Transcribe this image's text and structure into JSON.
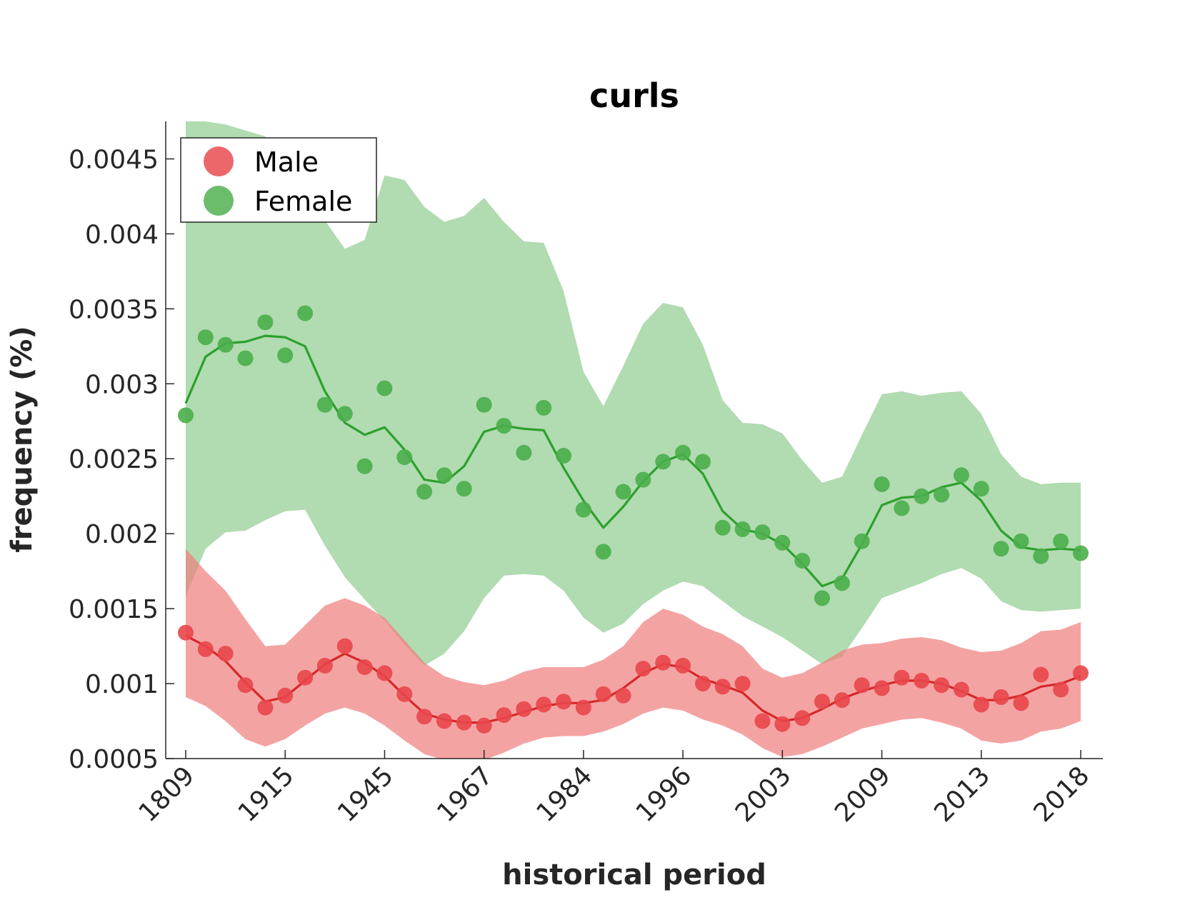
{
  "chart_data": {
    "type": "line",
    "title": "curls",
    "xlabel": "historical period",
    "ylabel": "frequency (%)",
    "ylim": [
      0.0005,
      0.00475
    ],
    "xlim": [
      0,
      45
    ],
    "yticks": [
      0.0005,
      0.001,
      0.0015,
      0.002,
      0.0025,
      0.003,
      0.0035,
      0.004,
      0.0045
    ],
    "ytick_labels": [
      "0.0005",
      "0.001",
      "0.0015",
      "0.002",
      "0.0025",
      "0.003",
      "0.0035",
      "0.004",
      "0.0045"
    ],
    "xtick_positions": [
      0,
      5,
      10,
      15,
      20,
      25,
      30,
      35,
      40,
      45
    ],
    "xtick_labels": [
      "1809",
      "1915",
      "1945",
      "1967",
      "1984",
      "1996",
      "2003",
      "2009",
      "2013",
      "2018"
    ],
    "grid": false,
    "legend_position": "top-left",
    "series": [
      {
        "name": "Male",
        "color": "#d62728",
        "point_color": "#e8464a",
        "band_color": "#f08080",
        "points": [
          0.00134,
          0.00123,
          0.0012,
          0.00099,
          0.00084,
          0.00092,
          0.00104,
          0.00112,
          0.00125,
          0.00111,
          0.00107,
          0.00093,
          0.00078,
          0.00075,
          0.00074,
          0.00072,
          0.00079,
          0.00083,
          0.00086,
          0.00088,
          0.00084,
          0.00093,
          0.00092,
          0.0011,
          0.00114,
          0.00112,
          0.001,
          0.00098,
          0.001,
          0.00075,
          0.00073,
          0.00077,
          0.00088,
          0.00089,
          0.00099,
          0.00097,
          0.00104,
          0.00102,
          0.00099,
          0.00096,
          0.00086,
          0.00091,
          0.00087,
          0.00106,
          0.00096,
          0.00107
        ],
        "line": [
          0.00132,
          0.00125,
          0.00115,
          0.00101,
          0.00088,
          0.00091,
          0.00102,
          0.00113,
          0.0012,
          0.00114,
          0.00105,
          0.00092,
          0.0008,
          0.00076,
          0.00074,
          0.00074,
          0.00077,
          0.00081,
          0.00085,
          0.00087,
          0.00087,
          0.00089,
          0.00097,
          0.00107,
          0.00113,
          0.00111,
          0.00103,
          0.00099,
          0.00094,
          0.00082,
          0.00075,
          0.00077,
          0.00083,
          0.0009,
          0.00095,
          0.00099,
          0.00102,
          0.00102,
          0.001,
          0.00095,
          0.00089,
          0.00089,
          0.00092,
          0.00098,
          0.001,
          0.00105
        ],
        "band_upper": [
          0.0019,
          0.00175,
          0.00162,
          0.00143,
          0.00125,
          0.00126,
          0.00139,
          0.00152,
          0.00157,
          0.00152,
          0.00144,
          0.00129,
          0.00114,
          0.00105,
          0.00101,
          0.00099,
          0.00102,
          0.00108,
          0.00111,
          0.00111,
          0.00111,
          0.00116,
          0.00125,
          0.00141,
          0.0015,
          0.00146,
          0.00138,
          0.00133,
          0.00125,
          0.0011,
          0.00104,
          0.00107,
          0.00114,
          0.00122,
          0.00126,
          0.00127,
          0.0013,
          0.00131,
          0.00129,
          0.00124,
          0.00121,
          0.00122,
          0.00127,
          0.00135,
          0.00136,
          0.00141
        ],
        "band_lower": [
          0.00091,
          0.00085,
          0.00075,
          0.00063,
          0.00058,
          0.00063,
          0.00072,
          0.0008,
          0.00084,
          0.0008,
          0.00072,
          0.00062,
          0.00053,
          0.00049,
          0.00048,
          0.00049,
          0.00054,
          0.0006,
          0.00064,
          0.00065,
          0.00065,
          0.00068,
          0.00073,
          0.0008,
          0.00084,
          0.00082,
          0.00076,
          0.00072,
          0.00066,
          0.00057,
          0.00051,
          0.00053,
          0.00058,
          0.00064,
          0.0007,
          0.00073,
          0.00076,
          0.00077,
          0.00074,
          0.0007,
          0.00062,
          0.0006,
          0.00062,
          0.00068,
          0.0007,
          0.00075
        ]
      },
      {
        "name": "Female",
        "color": "#2ca02c",
        "point_color": "#4aae4a",
        "band_color": "#9ed29e",
        "points": [
          0.00279,
          0.00331,
          0.00326,
          0.00317,
          0.00341,
          0.00319,
          0.00347,
          0.00286,
          0.0028,
          0.00245,
          0.00297,
          0.00251,
          0.00228,
          0.00239,
          0.0023,
          0.00286,
          0.00272,
          0.00254,
          0.00284,
          0.00252,
          0.00216,
          0.00188,
          0.00228,
          0.00236,
          0.00248,
          0.00254,
          0.00248,
          0.00204,
          0.00203,
          0.00201,
          0.00194,
          0.00182,
          0.00157,
          0.00167,
          0.00195,
          0.00233,
          0.00217,
          0.00225,
          0.00226,
          0.00239,
          0.0023,
          0.0019,
          0.00195,
          0.00185,
          0.00195,
          0.00187
        ],
        "line": [
          0.00287,
          0.00318,
          0.00327,
          0.00328,
          0.00332,
          0.00331,
          0.00325,
          0.00295,
          0.00274,
          0.00266,
          0.00271,
          0.00256,
          0.00236,
          0.00234,
          0.00245,
          0.00268,
          0.00272,
          0.0027,
          0.00269,
          0.00244,
          0.00222,
          0.00204,
          0.00218,
          0.00235,
          0.00248,
          0.00253,
          0.0024,
          0.00215,
          0.00203,
          0.002,
          0.00193,
          0.0018,
          0.00165,
          0.0017,
          0.00193,
          0.00219,
          0.00224,
          0.00225,
          0.00231,
          0.00234,
          0.00222,
          0.00202,
          0.00191,
          0.00189,
          0.0019,
          0.00189
        ],
        "band_upper": [
          0.00475,
          0.00475,
          0.00473,
          0.00469,
          0.00465,
          0.00447,
          0.00429,
          0.00409,
          0.0039,
          0.00396,
          0.00439,
          0.00436,
          0.00418,
          0.00408,
          0.00412,
          0.00424,
          0.00408,
          0.00395,
          0.00394,
          0.00362,
          0.00308,
          0.00285,
          0.00312,
          0.0034,
          0.00354,
          0.00351,
          0.00326,
          0.00289,
          0.00274,
          0.00273,
          0.00267,
          0.00249,
          0.00234,
          0.00238,
          0.00266,
          0.00293,
          0.00295,
          0.00292,
          0.00294,
          0.00295,
          0.0028,
          0.00253,
          0.00238,
          0.00233,
          0.00234,
          0.00234
        ],
        "band_lower": [
          0.00158,
          0.0019,
          0.00201,
          0.00202,
          0.00209,
          0.00215,
          0.00216,
          0.00192,
          0.00171,
          0.00156,
          0.00142,
          0.00126,
          0.00112,
          0.0012,
          0.00135,
          0.00157,
          0.00172,
          0.00173,
          0.00172,
          0.00162,
          0.00144,
          0.00134,
          0.0014,
          0.00153,
          0.00162,
          0.00168,
          0.00165,
          0.00155,
          0.00145,
          0.00138,
          0.00131,
          0.00122,
          0.00113,
          0.00118,
          0.00137,
          0.00157,
          0.00162,
          0.00167,
          0.00173,
          0.00177,
          0.0017,
          0.00155,
          0.00149,
          0.00148,
          0.00149,
          0.0015
        ]
      }
    ]
  }
}
